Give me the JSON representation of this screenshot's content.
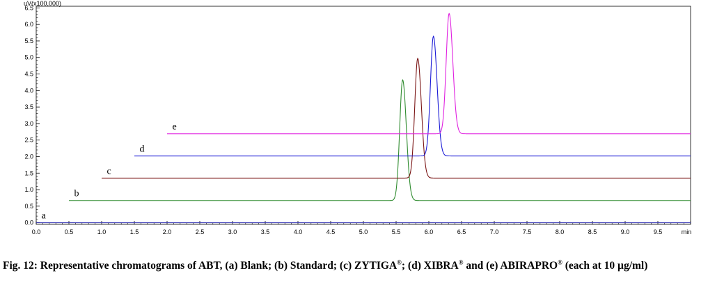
{
  "chart_data": {
    "type": "line",
    "ylabel": "uV(x100,000)",
    "xunit": "min",
    "xlim": [
      0,
      10.0
    ],
    "ylim": [
      -0.05,
      6.55
    ],
    "x_ticks": [
      "0.0",
      "0.5",
      "1.0",
      "1.5",
      "2.0",
      "2.5",
      "3.0",
      "3.5",
      "4.0",
      "4.5",
      "5.0",
      "5.5",
      "6.0",
      "6.5",
      "7.0",
      "7.5",
      "8.0",
      "8.5",
      "9.0",
      "9.5",
      "min"
    ],
    "y_ticks": [
      "0.0",
      "0.5",
      "1.0",
      "1.5",
      "2.0",
      "2.5",
      "3.0",
      "3.5",
      "4.0",
      "4.5",
      "5.0",
      "5.5",
      "6.0",
      "6.5"
    ],
    "grid": false,
    "series": [
      {
        "name": "a",
        "color": "#3b3bb8",
        "x_start": 0.0,
        "x_end": 10.0,
        "baseline": 0.0,
        "peak_rt": null,
        "peak_height": null
      },
      {
        "name": "b",
        "color": "#2e8b2e",
        "x_start": 0.5,
        "x_end": 10.0,
        "baseline": 0.67,
        "peak_rt": 5.6,
        "peak_height": 4.32
      },
      {
        "name": "c",
        "color": "#7a1515",
        "x_start": 1.0,
        "x_end": 10.0,
        "baseline": 1.35,
        "peak_rt": 5.83,
        "peak_height": 4.97
      },
      {
        "name": "d",
        "color": "#1a1ad6",
        "x_start": 1.5,
        "x_end": 10.0,
        "baseline": 2.02,
        "peak_rt": 6.07,
        "peak_height": 5.64
      },
      {
        "name": "e",
        "color": "#e020e0",
        "x_start": 2.0,
        "x_end": 10.0,
        "baseline": 2.69,
        "peak_rt": 6.31,
        "peak_height": 6.33
      }
    ]
  },
  "caption": {
    "p1": "Fig. 12: Representative chromatograms of ABT, (a) Blank; (b) Standard; (c) ZYTIGA",
    "reg1": "®",
    "p2": "; (d) XIBRA",
    "reg2": "®",
    "p3": " and (e) ABIRAPRO",
    "reg3": "®",
    "p4": " (each at 10 µg/ml)"
  }
}
